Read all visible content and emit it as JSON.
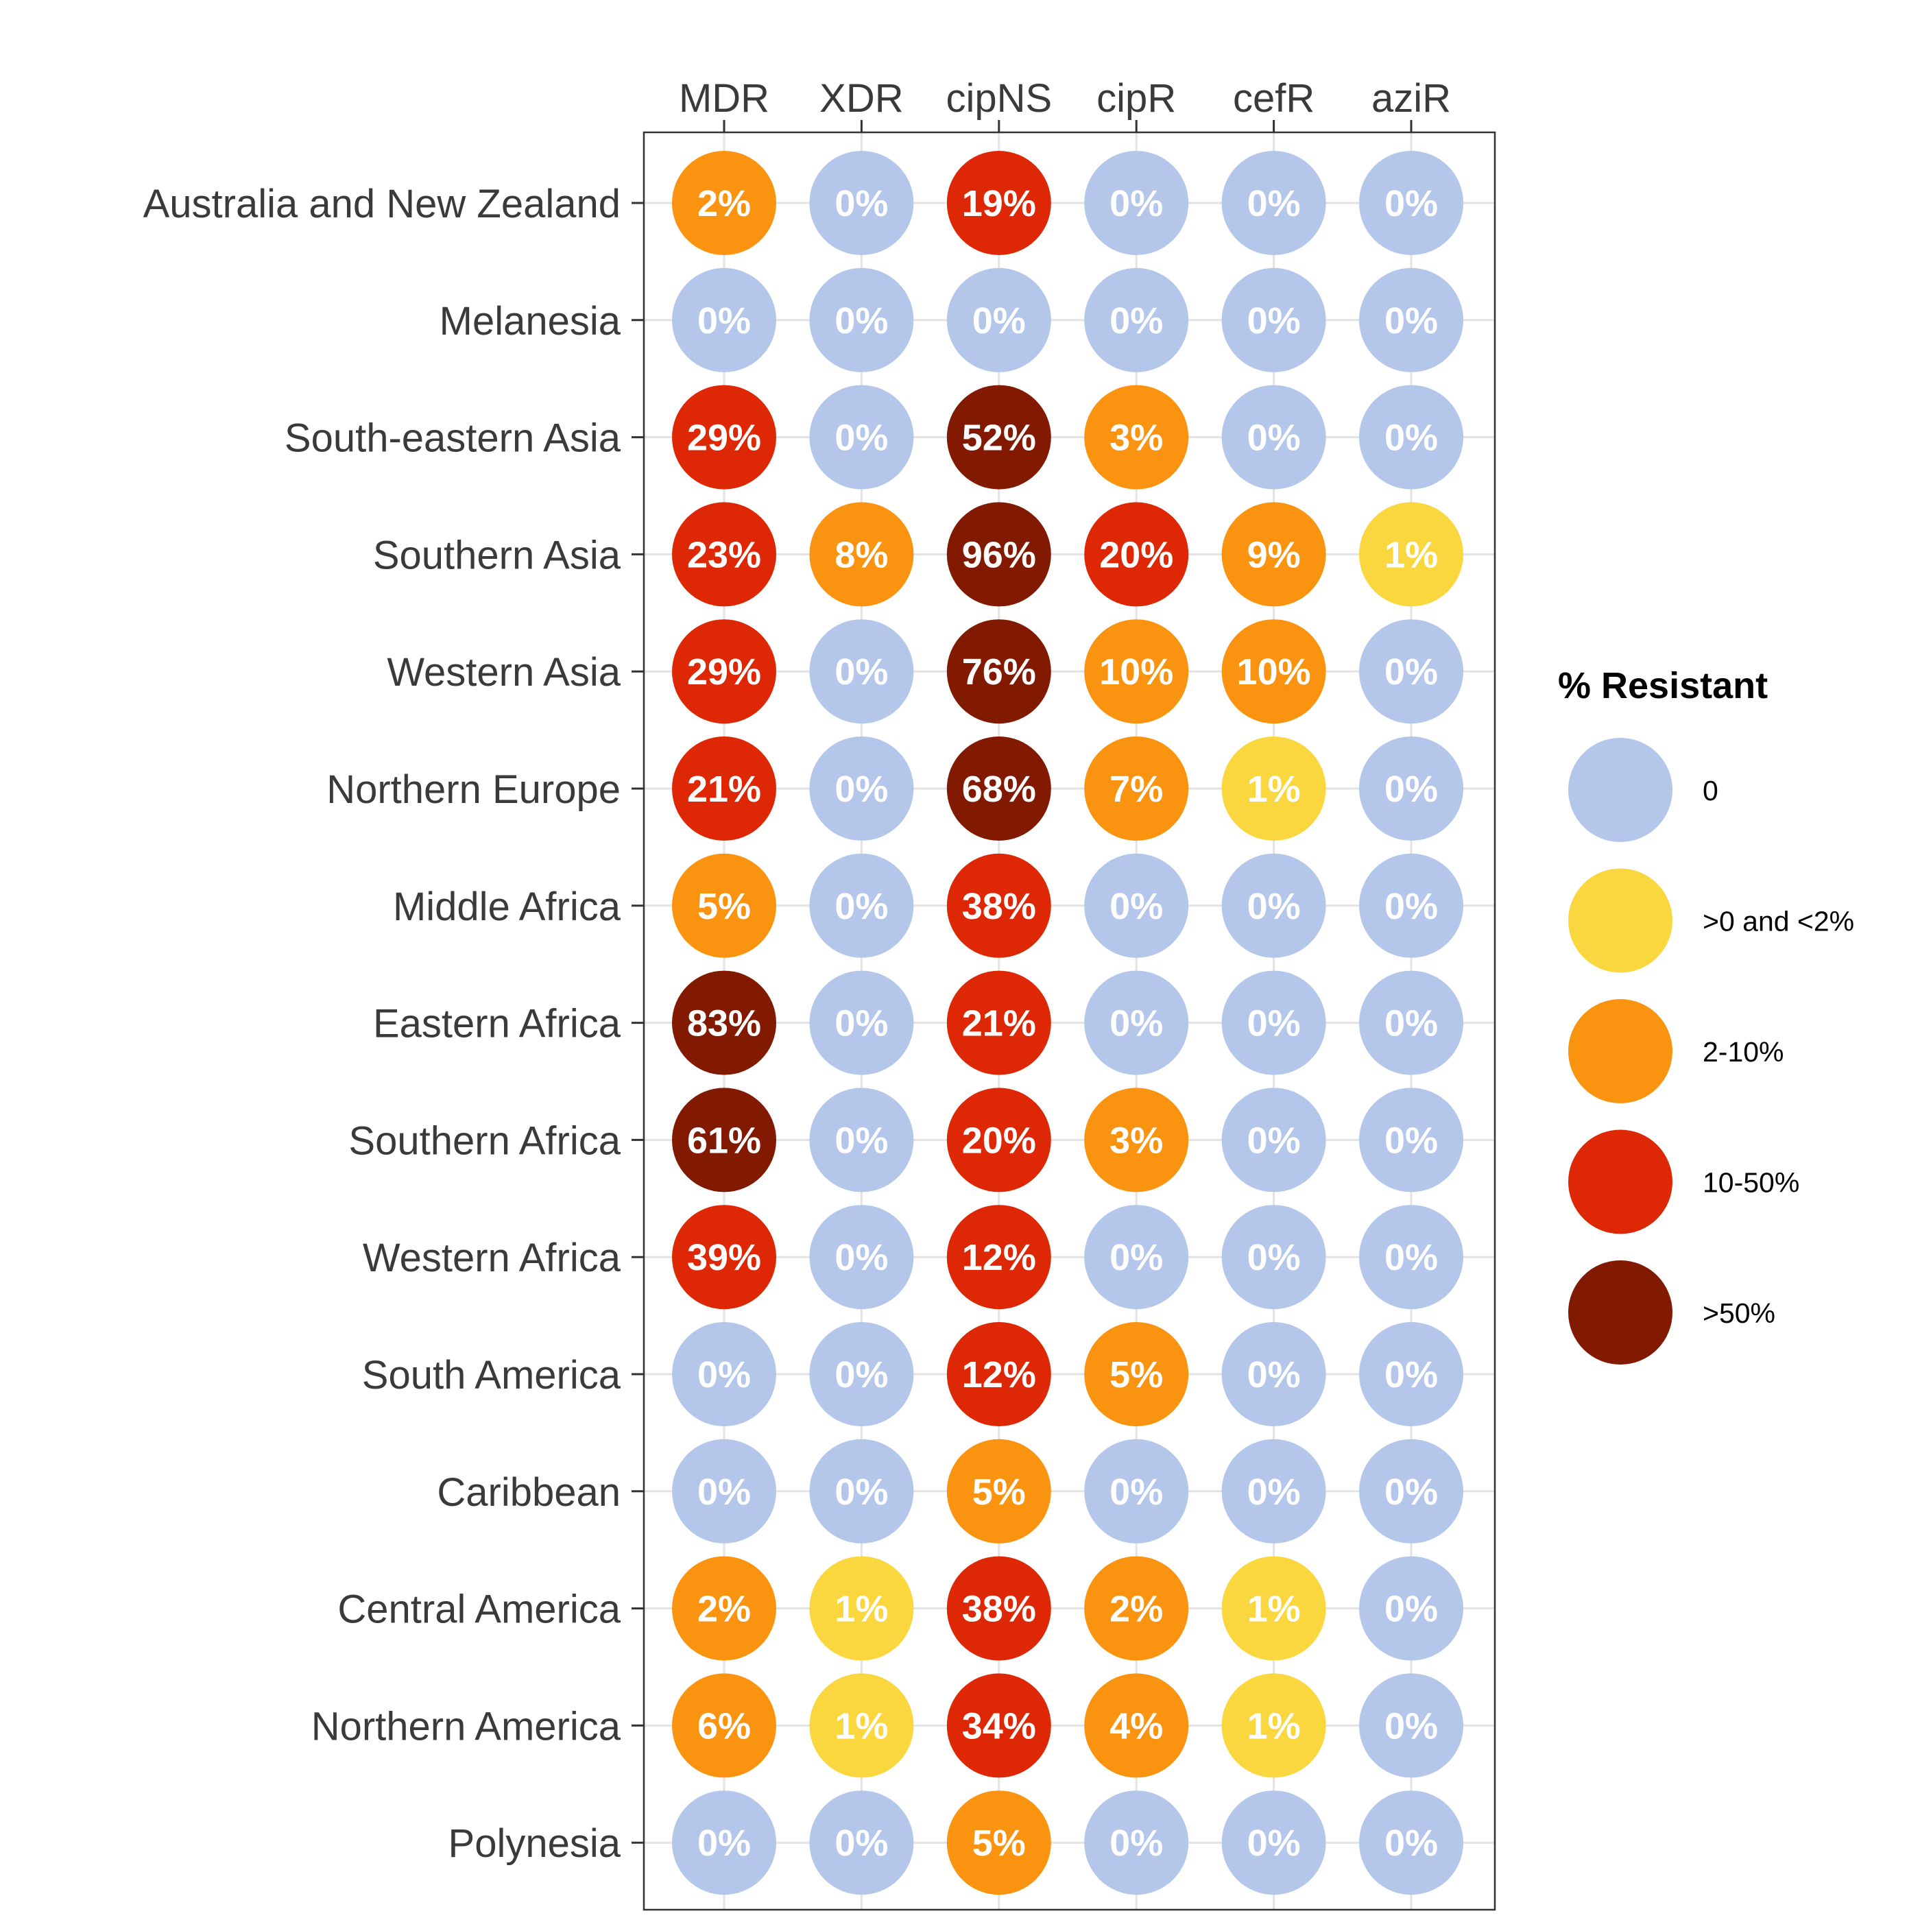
{
  "chart_data": {
    "type": "heatmap",
    "columns": [
      "MDR",
      "XDR",
      "cipNS",
      "cipR",
      "cefR",
      "aziR"
    ],
    "rows": [
      "Australia and New Zealand",
      "Melanesia",
      "South-eastern Asia",
      "Southern Asia",
      "Western Asia",
      "Northern Europe",
      "Middle Africa",
      "Eastern Africa",
      "Southern Africa",
      "Western Africa",
      "South America",
      "Caribbean",
      "Central America",
      "Northern America",
      "Polynesia"
    ],
    "values": [
      [
        2,
        0,
        19,
        0,
        0,
        0
      ],
      [
        0,
        0,
        0,
        0,
        0,
        0
      ],
      [
        29,
        0,
        52,
        3,
        0,
        0
      ],
      [
        23,
        8,
        96,
        20,
        9,
        1
      ],
      [
        29,
        0,
        76,
        10,
        10,
        0
      ],
      [
        21,
        0,
        68,
        7,
        1,
        0
      ],
      [
        5,
        0,
        38,
        0,
        0,
        0
      ],
      [
        83,
        0,
        21,
        0,
        0,
        0
      ],
      [
        61,
        0,
        20,
        3,
        0,
        0
      ],
      [
        39,
        0,
        12,
        0,
        0,
        0
      ],
      [
        0,
        0,
        12,
        5,
        0,
        0
      ],
      [
        0,
        0,
        5,
        0,
        0,
        0
      ],
      [
        2,
        1,
        38,
        2,
        1,
        0
      ],
      [
        6,
        1,
        34,
        4,
        1,
        0
      ],
      [
        0,
        0,
        5,
        0,
        0,
        0
      ]
    ],
    "value_suffix": "%",
    "legend": {
      "title": "% Resistant",
      "position": "right",
      "categories": [
        {
          "label": "0",
          "color": "#B4C6EA"
        },
        {
          "label": ">0 and <2%",
          "color": "#FBD73F"
        },
        {
          "label": "2-10%",
          "color": "#FA9410"
        },
        {
          "label": "10-50%",
          "color": "#DD2705"
        },
        {
          "label": ">50%",
          "color": "#821A02"
        }
      ]
    },
    "grid": true
  }
}
